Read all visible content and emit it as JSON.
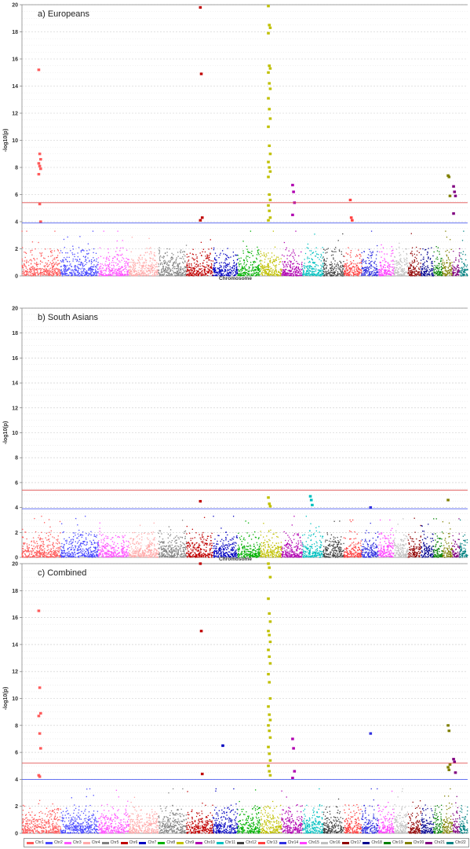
{
  "chart_data": [
    {
      "type": "scatter",
      "subtype": "manhattan",
      "panel_title": "a) Europeans",
      "ylabel": "-log10(p)",
      "xlabel": "Chromosome",
      "ylim": [
        0,
        20
      ],
      "yticks": [
        0,
        2,
        4,
        6,
        8,
        10,
        12,
        14,
        16,
        18,
        20
      ],
      "thresholds": [
        5.4,
        3.9
      ],
      "max_by_chromosome": [
        15.2,
        4.2,
        3.8,
        4.7,
        3.5,
        19.8,
        5.0,
        4.5,
        19.9,
        6.7,
        5.6,
        5.6,
        5.1,
        4.1,
        4.1,
        4.3,
        3.8,
        4.9,
        4.0,
        7.4,
        6.6,
        4.0
      ],
      "hits": [
        {
          "chromosome": 1,
          "values": [
            15.2,
            9.0,
            8.6,
            8.3,
            8.1,
            7.9,
            7.5,
            5.3,
            4.0
          ]
        },
        {
          "chromosome": 6,
          "values": [
            19.8,
            14.9,
            4.3,
            4.1
          ]
        },
        {
          "chromosome": 9,
          "values": [
            19.9,
            18.5,
            18.3,
            17.9,
            15.5,
            15.3,
            15.0,
            14.2,
            13.8,
            13.1,
            12.3,
            11.6,
            11.0,
            9.6,
            9.0,
            8.4,
            8.0,
            7.7,
            7.3,
            6.0,
            5.6,
            5.2,
            4.8,
            4.3,
            4.1
          ]
        },
        {
          "chromosome": 10,
          "values": [
            6.7,
            6.2,
            5.4,
            4.5
          ]
        },
        {
          "chromosome": 13,
          "values": [
            5.6,
            4.3,
            4.1
          ]
        },
        {
          "chromosome": 20,
          "values": [
            7.4,
            7.3,
            5.9
          ]
        },
        {
          "chromosome": 21,
          "values": [
            6.6,
            6.2,
            5.9,
            4.6
          ]
        }
      ]
    },
    {
      "type": "scatter",
      "subtype": "manhattan",
      "panel_title": "b) South Asians",
      "ylabel": "-log10(p)",
      "xlabel": "Chromosome",
      "ylim": [
        0,
        20
      ],
      "yticks": [
        0,
        2,
        4,
        6,
        8,
        10,
        12,
        14,
        16,
        18,
        20
      ],
      "thresholds": [
        5.4,
        3.9
      ],
      "max_by_chromosome": [
        3.3,
        3.8,
        3.0,
        3.2,
        3.0,
        4.5,
        3.5,
        3.5,
        4.8,
        3.8,
        4.9,
        3.1,
        3.0,
        4.0,
        3.0,
        3.1,
        3.8,
        3.0,
        3.1,
        4.6,
        3.1,
        3.0
      ],
      "hits": [
        {
          "chromosome": 6,
          "values": [
            4.5
          ]
        },
        {
          "chromosome": 9,
          "values": [
            4.8,
            4.3,
            4.1
          ]
        },
        {
          "chromosome": 11,
          "values": [
            4.9,
            4.6,
            4.2
          ]
        },
        {
          "chromosome": 14,
          "values": [
            4.0
          ]
        },
        {
          "chromosome": 20,
          "values": [
            4.6
          ]
        }
      ]
    },
    {
      "type": "scatter",
      "subtype": "manhattan",
      "panel_title": "c) Combined",
      "ylabel": "-log10(p)",
      "xlabel": "Chromosome",
      "ylim": [
        0,
        20
      ],
      "yticks": [
        0,
        2,
        4,
        6,
        8,
        10,
        12,
        14,
        16,
        18,
        20
      ],
      "thresholds": [
        5.2,
        4.0
      ],
      "max_by_chromosome": [
        16.5,
        4.7,
        4.2,
        4.7,
        3.8,
        20.0,
        6.5,
        4.4,
        20.0,
        7.0,
        4.5,
        5.0,
        4.0,
        7.4,
        4.1,
        4.2,
        4.0,
        4.9,
        4.9,
        8.0,
        5.5,
        4.1
      ],
      "hits": [
        {
          "chromosome": 1,
          "values": [
            16.5,
            10.8,
            8.9,
            8.7,
            7.4,
            6.3,
            4.3,
            4.2
          ]
        },
        {
          "chromosome": 6,
          "values": [
            20.0,
            15.0,
            4.4
          ]
        },
        {
          "chromosome": 7,
          "values": [
            6.5
          ]
        },
        {
          "chromosome": 9,
          "values": [
            20.0,
            19.7,
            19.0,
            17.4,
            16.3,
            15.7,
            15.0,
            14.7,
            14.2,
            13.6,
            13.1,
            12.6,
            11.8,
            11.2,
            10.0,
            9.4,
            8.8,
            8.4,
            8.0,
            7.6,
            7.1,
            6.4,
            5.9,
            5.4,
            5.0,
            4.6,
            4.3
          ]
        },
        {
          "chromosome": 10,
          "values": [
            7.0,
            6.3,
            4.6,
            4.1
          ]
        },
        {
          "chromosome": 14,
          "values": [
            7.4
          ]
        },
        {
          "chromosome": 20,
          "values": [
            8.0,
            7.6,
            5.1,
            4.9,
            4.7
          ]
        },
        {
          "chromosome": 21,
          "values": [
            5.5,
            5.3,
            4.5
          ]
        }
      ]
    }
  ],
  "legend": {
    "items": [
      {
        "label": "Chr1",
        "color": "#ff5a5a"
      },
      {
        "label": "Chr2",
        "color": "#4a4aff"
      },
      {
        "label": "Chr3",
        "color": "#ff55ff"
      },
      {
        "label": "Chr4",
        "color": "#ffaaaa"
      },
      {
        "label": "Chr5",
        "color": "#808080"
      },
      {
        "label": "Chr6",
        "color": "#c00000"
      },
      {
        "label": "Chr7",
        "color": "#0000c0"
      },
      {
        "label": "Chr8",
        "color": "#00b000"
      },
      {
        "label": "Chr9",
        "color": "#c0c000"
      },
      {
        "label": "Chr10",
        "color": "#b000b0"
      },
      {
        "label": "Chr11",
        "color": "#00c0c0"
      },
      {
        "label": "Chr12",
        "color": "#404040"
      },
      {
        "label": "Chr13",
        "color": "#ff4040"
      },
      {
        "label": "Chr14",
        "color": "#3030e0"
      },
      {
        "label": "Chr15",
        "color": "#ff40ff"
      },
      {
        "label": "Chr16",
        "color": "#c0c0c0"
      },
      {
        "label": "Chr17",
        "color": "#900000"
      },
      {
        "label": "Chr18",
        "color": "#000090"
      },
      {
        "label": "Chr19",
        "color": "#008000"
      },
      {
        "label": "Chr20",
        "color": "#808000"
      },
      {
        "label": "Chr21",
        "color": "#800080"
      },
      {
        "label": "Chr22",
        "color": "#008080"
      }
    ]
  },
  "colors": {
    "upper_threshold": "#e05050",
    "lower_threshold": "#5060f0",
    "grid": "#d8d8d8"
  }
}
